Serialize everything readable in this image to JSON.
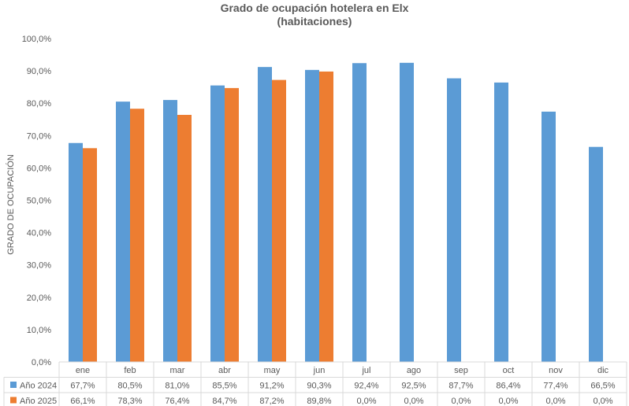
{
  "chart_data": {
    "type": "bar",
    "title_lines": [
      "Grado de ocupación hotelera en Elx",
      "(habitaciones)"
    ],
    "xlabel": "",
    "ylabel": "GRADO DE OCUPACIÓN",
    "ylim": [
      0,
      100
    ],
    "yticks": [
      0,
      10,
      20,
      30,
      40,
      50,
      60,
      70,
      80,
      90,
      100
    ],
    "ytick_labels": [
      "0,0%",
      "10,0%",
      "20,0%",
      "30,0%",
      "40,0%",
      "50,0%",
      "60,0%",
      "70,0%",
      "80,0%",
      "90,0%",
      "100,0%"
    ],
    "grid": false,
    "legend_placement": "data-table-left",
    "categories": [
      "ene",
      "feb",
      "mar",
      "abr",
      "may",
      "jun",
      "jul",
      "ago",
      "sep",
      "oct",
      "nov",
      "dic"
    ],
    "series": [
      {
        "name": "Año 2024",
        "color": "#5B9BD5",
        "values": [
          67.7,
          80.5,
          81.0,
          85.5,
          91.2,
          90.3,
          92.4,
          92.5,
          87.7,
          86.4,
          77.4,
          66.5
        ],
        "labels": [
          "67,7%",
          "80,5%",
          "81,0%",
          "85,5%",
          "91,2%",
          "90,3%",
          "92,4%",
          "92,5%",
          "87,7%",
          "86,4%",
          "77,4%",
          "66,5%"
        ]
      },
      {
        "name": "Año 2025",
        "color": "#ED7D31",
        "values": [
          66.1,
          78.3,
          76.4,
          84.7,
          87.2,
          89.8,
          0.0,
          0.0,
          0.0,
          0.0,
          0.0,
          0.0
        ],
        "labels": [
          "66,1%",
          "78,3%",
          "76,4%",
          "84,7%",
          "87,2%",
          "89,8%",
          "0,0%",
          "0,0%",
          "0,0%",
          "0,0%",
          "0,0%",
          "0,0%"
        ]
      }
    ]
  }
}
